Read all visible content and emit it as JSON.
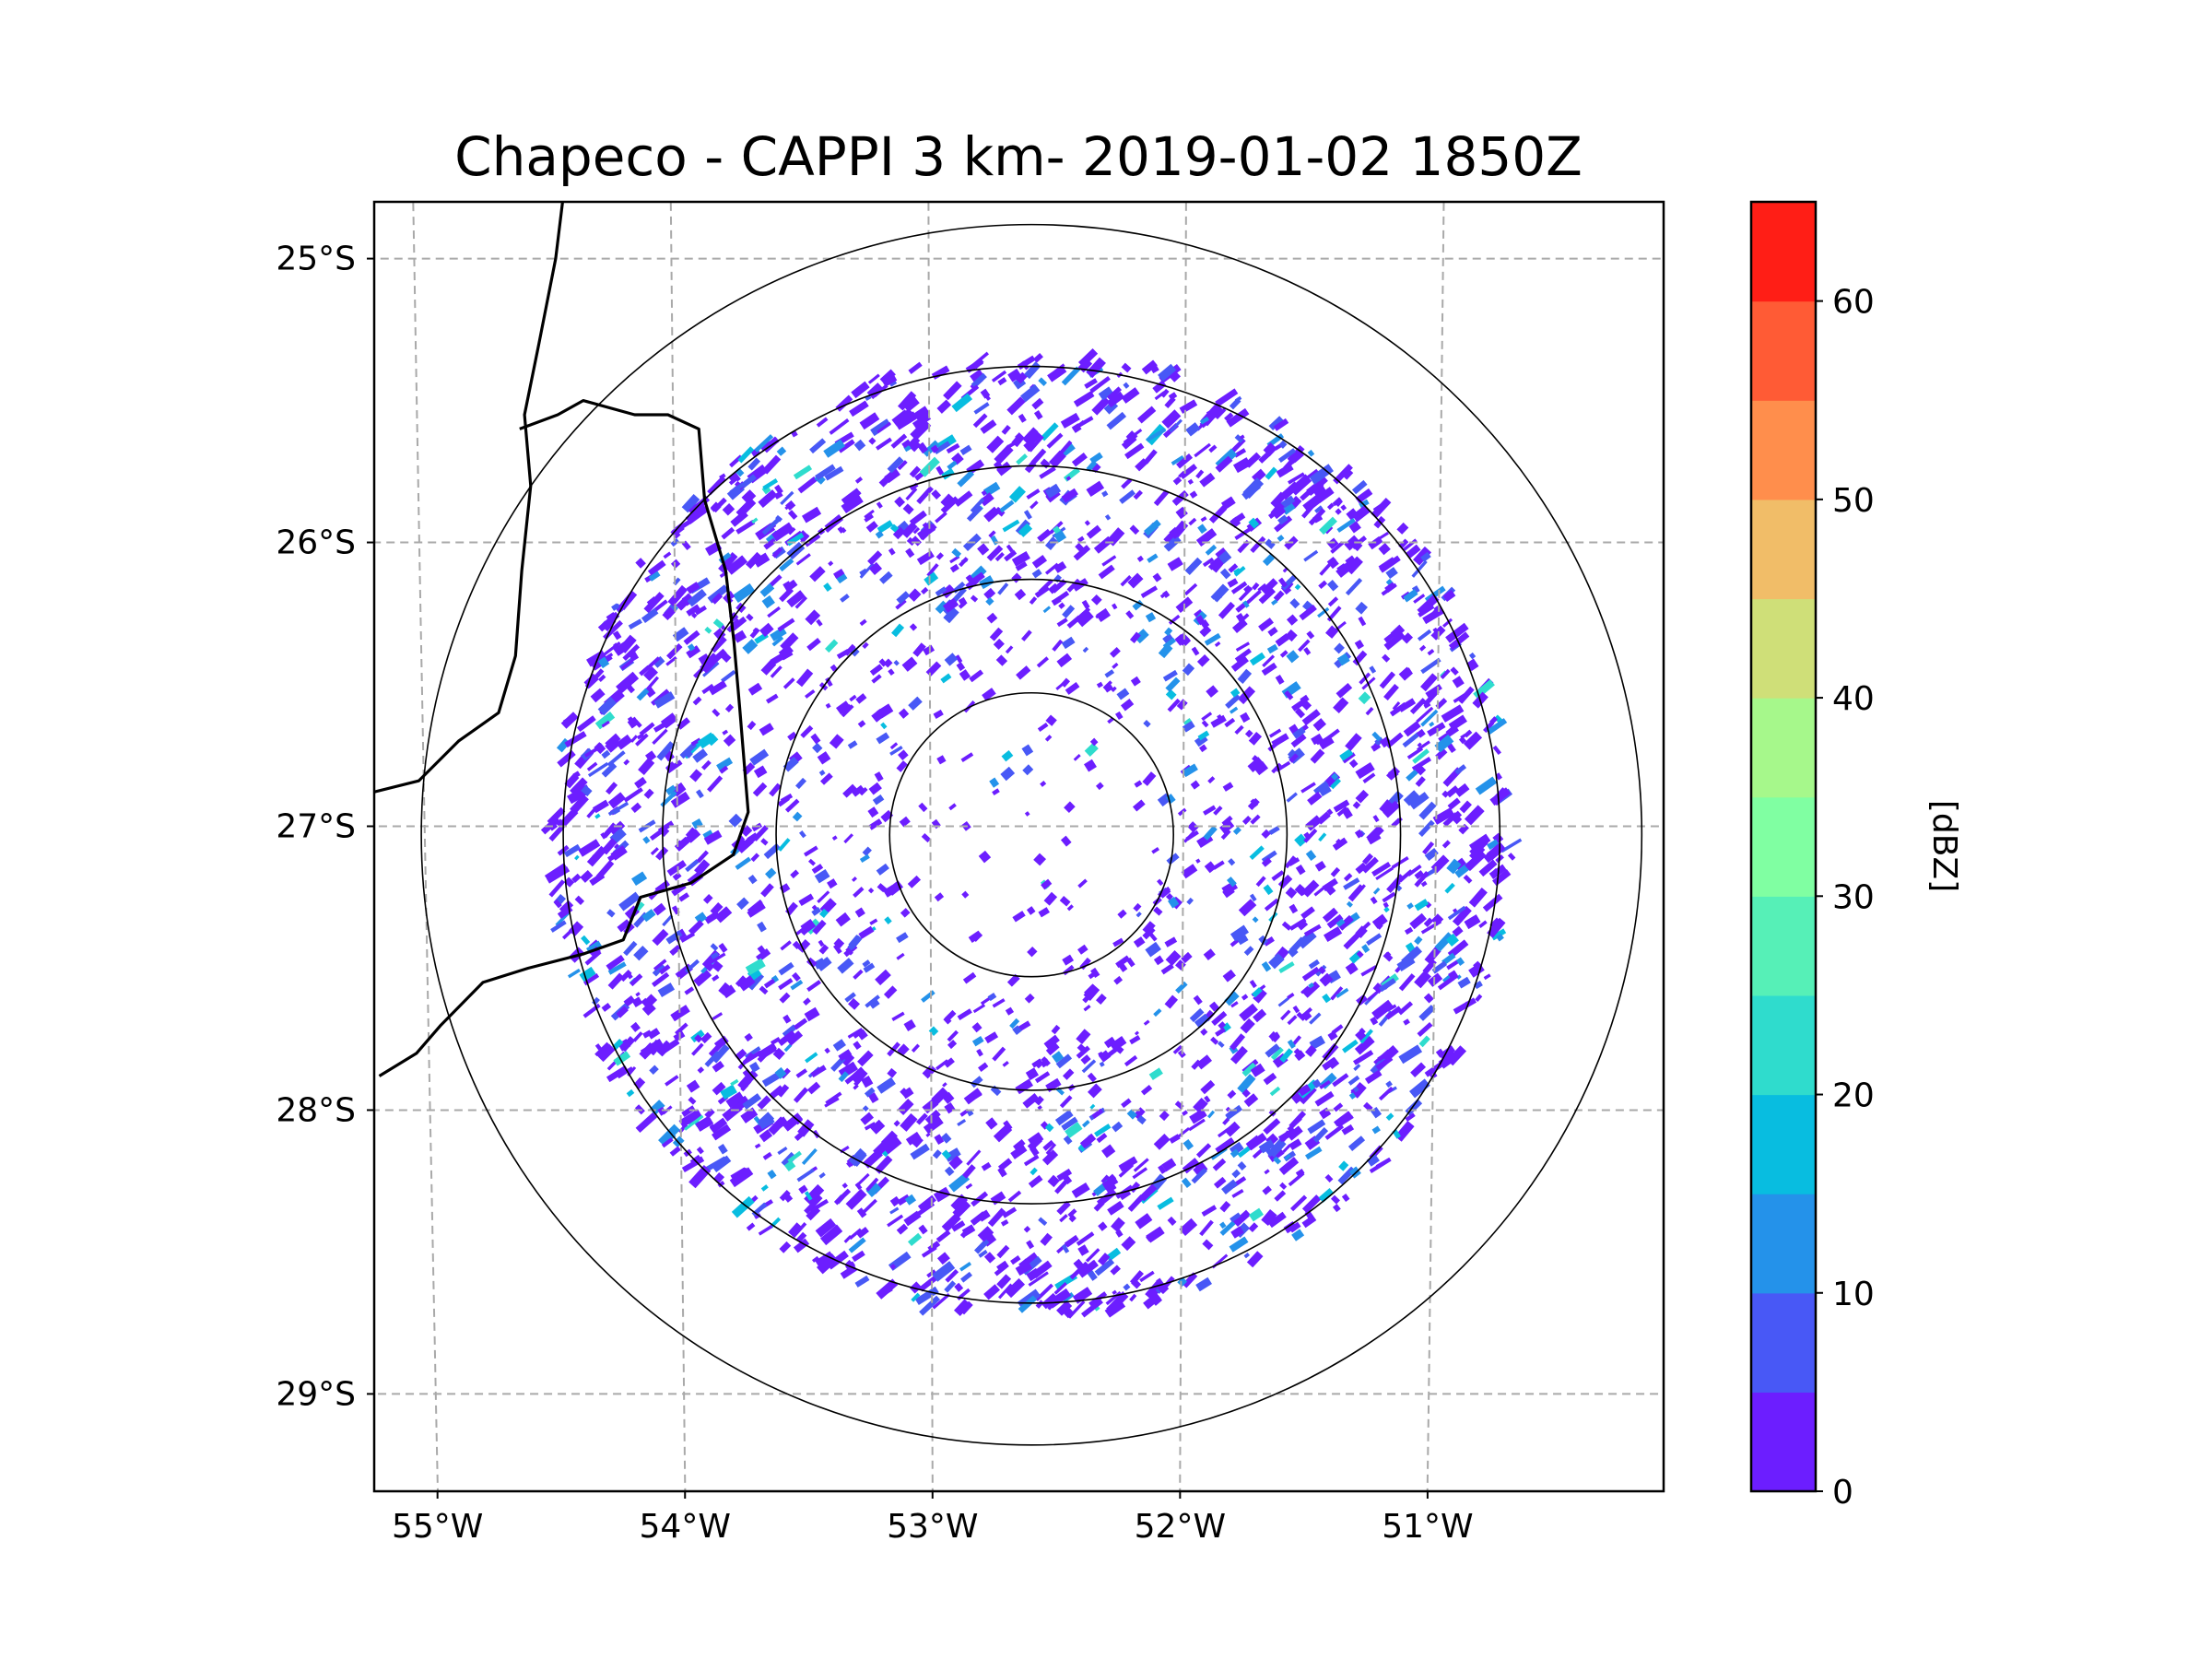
{
  "chart_data": {
    "type": "radar-map",
    "title": "Chapeco - CAPPI 3 km- 2019-01-02 1850Z",
    "radar": {
      "name": "Chapeco",
      "product": "CAPPI 3 km",
      "date": "2019-01-02",
      "time": "1850Z",
      "lon": -52.6,
      "lat": -27.03
    },
    "xlim": [
      -55.2,
      -50.1
    ],
    "ylim": [
      -29.3,
      -24.8
    ],
    "lon_ticks": [
      {
        "value": -55,
        "label": "55°W"
      },
      {
        "value": -54,
        "label": "54°W"
      },
      {
        "value": -53,
        "label": "53°W"
      },
      {
        "value": -52,
        "label": "52°W"
      },
      {
        "value": -51,
        "label": "51°W"
      }
    ],
    "lat_ticks": [
      {
        "value": -25,
        "label": "25°S"
      },
      {
        "value": -26,
        "label": "26°S"
      },
      {
        "value": -27,
        "label": "27°S"
      },
      {
        "value": -28,
        "label": "28°S"
      },
      {
        "value": -29,
        "label": "29°S"
      }
    ],
    "range_rings_deg": [
      0.5,
      0.9,
      1.3,
      1.65,
      2.15
    ],
    "gridlines": true,
    "colorbar": {
      "label": "[dBZ]",
      "min": 0,
      "max": 65,
      "ticks": [
        {
          "value": 0,
          "label": "0"
        },
        {
          "value": 10,
          "label": "10"
        },
        {
          "value": 20,
          "label": "20"
        },
        {
          "value": 30,
          "label": "30"
        },
        {
          "value": 40,
          "label": "40"
        },
        {
          "value": 50,
          "label": "50"
        },
        {
          "value": 60,
          "label": "60"
        }
      ],
      "bins": [
        {
          "from": 0,
          "to": 5,
          "color": "#6c1eff"
        },
        {
          "from": 5,
          "to": 10,
          "color": "#4858f6"
        },
        {
          "from": 10,
          "to": 15,
          "color": "#2492ea"
        },
        {
          "from": 15,
          "to": 20,
          "color": "#08bde0"
        },
        {
          "from": 20,
          "to": 25,
          "color": "#2fdccd"
        },
        {
          "from": 25,
          "to": 30,
          "color": "#56f0b7"
        },
        {
          "from": 30,
          "to": 35,
          "color": "#80ffa2"
        },
        {
          "from": 35,
          "to": 40,
          "color": "#a6f88b"
        },
        {
          "from": 40,
          "to": 45,
          "color": "#cfdf78"
        },
        {
          "from": 45,
          "to": 50,
          "color": "#f1bd68"
        },
        {
          "from": 50,
          "to": 55,
          "color": "#ff8e4c"
        },
        {
          "from": 55,
          "to": 60,
          "color": "#ff5b35"
        },
        {
          "from": 60,
          "to": 65,
          "color": "#ff1e16"
        }
      ]
    },
    "borders": [
      {
        "name": "argentina-brazil-paraguay-border",
        "points": [
          [
            -54.42,
            -24.8
          ],
          [
            -54.45,
            -25.0
          ],
          [
            -54.52,
            -25.3
          ],
          [
            -54.58,
            -25.55
          ],
          [
            -54.56,
            -25.8
          ],
          [
            -54.6,
            -26.1
          ],
          [
            -54.63,
            -26.4
          ],
          [
            -54.7,
            -26.6
          ],
          [
            -54.86,
            -26.7
          ],
          [
            -55.02,
            -26.84
          ],
          [
            -55.2,
            -26.88
          ]
        ]
      },
      {
        "name": "misiones-sc-border",
        "points": [
          [
            -54.6,
            -25.6
          ],
          [
            -54.45,
            -25.55
          ],
          [
            -54.35,
            -25.5
          ],
          [
            -54.15,
            -25.55
          ],
          [
            -54.02,
            -25.55
          ],
          [
            -53.9,
            -25.6
          ],
          [
            -53.88,
            -25.85
          ],
          [
            -53.8,
            -26.1
          ],
          [
            -53.77,
            -26.35
          ],
          [
            -53.75,
            -26.58
          ],
          [
            -53.72,
            -26.95
          ],
          [
            -53.78,
            -27.1
          ],
          [
            -53.95,
            -27.2
          ],
          [
            -54.15,
            -27.25
          ],
          [
            -54.22,
            -27.4
          ],
          [
            -54.38,
            -27.45
          ],
          [
            -54.6,
            -27.5
          ],
          [
            -54.78,
            -27.55
          ],
          [
            -54.95,
            -27.7
          ],
          [
            -55.05,
            -27.8
          ],
          [
            -55.2,
            -27.88
          ]
        ]
      }
    ],
    "echoes_summary": "scattered weak echoes (0–25 dBZ) across the radar coverage"
  }
}
